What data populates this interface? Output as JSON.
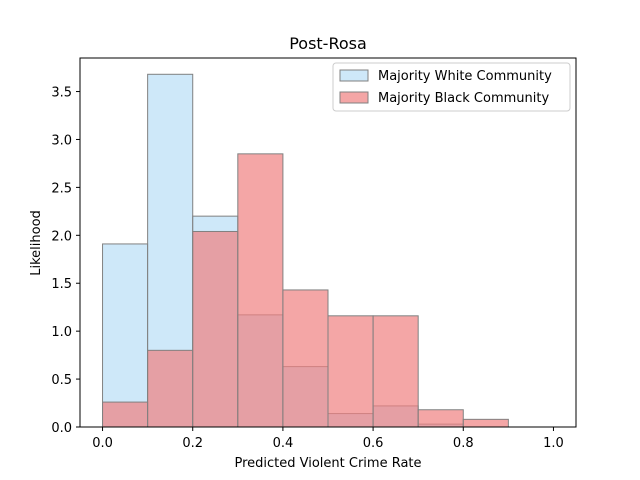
{
  "chart_data": {
    "type": "histogram",
    "title": "Post-Rosa",
    "xlabel": "Predicted Violent Crime Rate",
    "ylabel": "Likelihood",
    "xlim": [
      -0.05,
      1.05
    ],
    "ylim": [
      0,
      3.85
    ],
    "xticks": [
      0.0,
      0.2,
      0.4,
      0.6,
      0.8,
      1.0
    ],
    "xtick_labels": [
      "0.0",
      "0.2",
      "0.4",
      "0.6",
      "0.8",
      "1.0"
    ],
    "yticks": [
      0.0,
      0.5,
      1.0,
      1.5,
      2.0,
      2.5,
      3.0,
      3.5
    ],
    "ytick_labels": [
      "0.0",
      "0.5",
      "1.0",
      "1.5",
      "2.0",
      "2.5",
      "3.0",
      "3.5"
    ],
    "bin_edges": [
      0.0,
      0.1,
      0.2,
      0.3,
      0.4,
      0.5,
      0.6,
      0.7,
      0.8,
      0.9,
      1.0
    ],
    "grid": false,
    "legend_position": "top-right",
    "series": [
      {
        "name": "Majority White Community",
        "color": "#aed8f5",
        "alpha": 0.6,
        "values": [
          1.91,
          3.68,
          2.2,
          1.17,
          0.63,
          0.14,
          0.22,
          0.03,
          0.0,
          0.0
        ]
      },
      {
        "name": "Majority Black Community",
        "color": "#f08080",
        "alpha": 0.7,
        "values": [
          0.26,
          0.8,
          2.04,
          2.85,
          1.43,
          1.16,
          1.16,
          0.18,
          0.08,
          0.0
        ]
      }
    ],
    "edge_color": "#808080"
  }
}
